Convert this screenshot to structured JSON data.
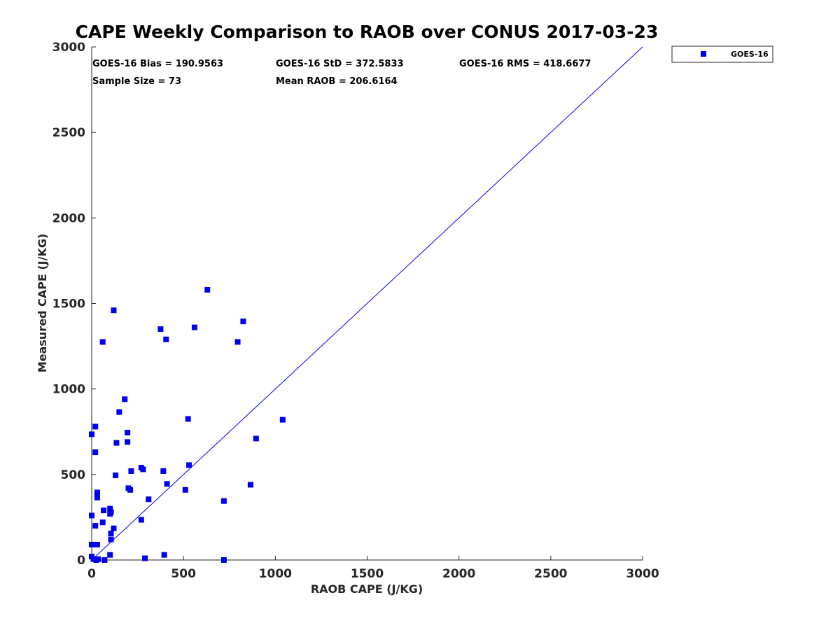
{
  "chart_data": {
    "type": "scatter",
    "title": "CAPE Weekly Comparison to RAOB over CONUS 2017-03-23",
    "xlabel": "RAOB CAPE (J/KG)",
    "ylabel": "Measured CAPE (J/KG)",
    "xlim": [
      0,
      3000
    ],
    "ylim": [
      0,
      3000
    ],
    "xticks": [
      "0",
      "500",
      "1000",
      "1500",
      "2000",
      "2500",
      "3000"
    ],
    "yticks": [
      "0",
      "500",
      "1000",
      "1500",
      "2000",
      "2500",
      "3000"
    ],
    "grid": false,
    "legend_position": "outside-top-right",
    "colors": {
      "series": "#0000ee",
      "reference_line": "#0000ee",
      "axes": "#262626"
    },
    "stats": {
      "bias": "GOES-16 Bias = 190.9563",
      "std": "GOES-16 StD = 372.5833",
      "rms": "GOES-16 RMS = 418.6677",
      "sample_size": "Sample Size = 73",
      "mean_raob": "Mean RAOB = 206.6164"
    },
    "reference_line": {
      "from": [
        0,
        0
      ],
      "to": [
        3000,
        3000
      ]
    },
    "series": [
      {
        "name": "GOES-16",
        "marker": "square",
        "points": [
          [
            0,
            735
          ],
          [
            20,
            780
          ],
          [
            20,
            630
          ],
          [
            0,
            260
          ],
          [
            20,
            200
          ],
          [
            0,
            90
          ],
          [
            0,
            20
          ],
          [
            10,
            5
          ],
          [
            25,
            0
          ],
          [
            35,
            5
          ],
          [
            30,
            90
          ],
          [
            30,
            395
          ],
          [
            30,
            380
          ],
          [
            30,
            365
          ],
          [
            60,
            1275
          ],
          [
            70,
            0
          ],
          [
            100,
            30
          ],
          [
            60,
            220
          ],
          [
            65,
            290
          ],
          [
            100,
            300
          ],
          [
            100,
            270
          ],
          [
            105,
            280
          ],
          [
            105,
            155
          ],
          [
            105,
            120
          ],
          [
            120,
            185
          ],
          [
            120,
            1460
          ],
          [
            130,
            495
          ],
          [
            135,
            685
          ],
          [
            150,
            865
          ],
          [
            180,
            940
          ],
          [
            195,
            745
          ],
          [
            195,
            690
          ],
          [
            200,
            420
          ],
          [
            210,
            410
          ],
          [
            215,
            520
          ],
          [
            270,
            540
          ],
          [
            280,
            530
          ],
          [
            270,
            235
          ],
          [
            290,
            10
          ],
          [
            310,
            355
          ],
          [
            375,
            1350
          ],
          [
            390,
            520
          ],
          [
            405,
            1290
          ],
          [
            410,
            445
          ],
          [
            395,
            30
          ],
          [
            510,
            410
          ],
          [
            525,
            825
          ],
          [
            530,
            555
          ],
          [
            560,
            1360
          ],
          [
            630,
            1580
          ],
          [
            720,
            345
          ],
          [
            720,
            0
          ],
          [
            795,
            1275
          ],
          [
            825,
            1395
          ],
          [
            865,
            440
          ],
          [
            895,
            710
          ],
          [
            1040,
            820
          ]
        ]
      }
    ]
  }
}
